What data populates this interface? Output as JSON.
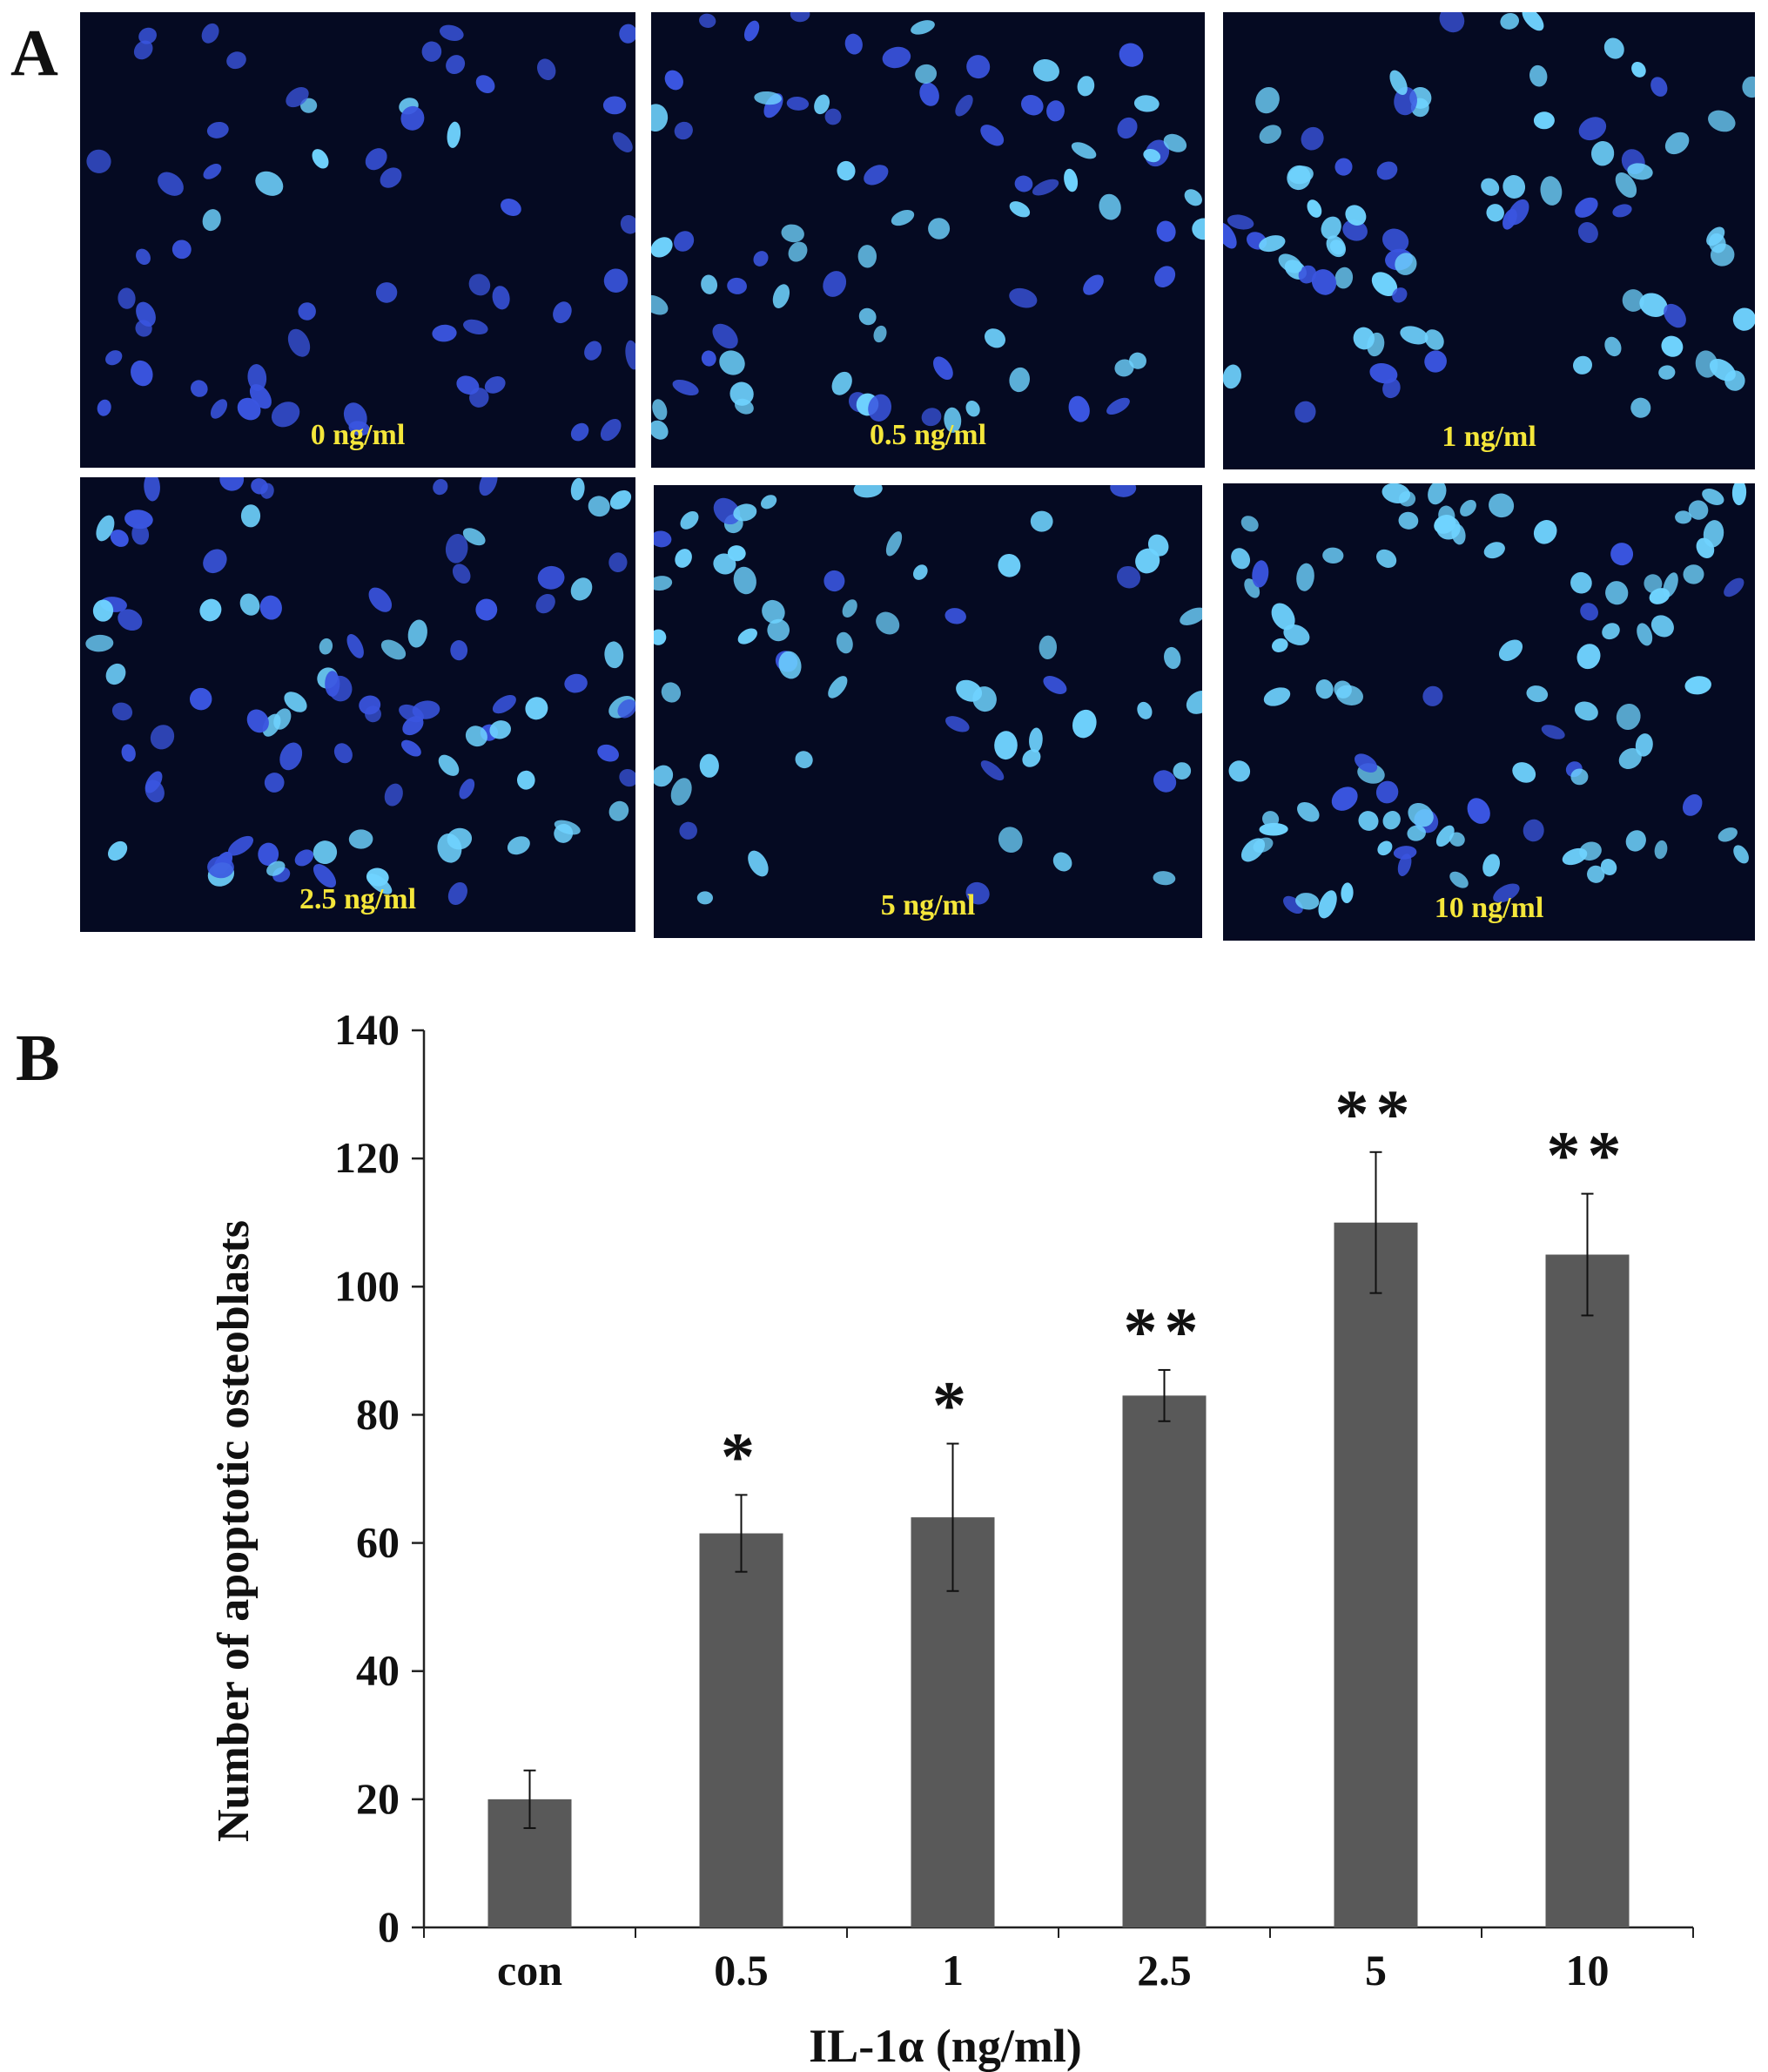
{
  "panels": {
    "a_label": "A",
    "b_label": "B"
  },
  "micrographs": [
    {
      "id": "m0",
      "label": "0 ng/ml",
      "bright": 0.15,
      "density": 60
    },
    {
      "id": "m1",
      "label": "0.5 ng/ml",
      "bright": 0.55,
      "density": 80
    },
    {
      "id": "m2",
      "label": "1 ng/ml",
      "bright": 0.65,
      "density": 80
    },
    {
      "id": "m3",
      "label": "2.5 ng/ml",
      "bright": 0.55,
      "density": 95
    },
    {
      "id": "m4",
      "label": "5 ng/ml",
      "bright": 0.75,
      "density": 60
    },
    {
      "id": "m5",
      "label": "10 ng/ml",
      "bright": 0.8,
      "density": 95
    }
  ],
  "colors": {
    "micro_bg": "#050a22",
    "nucleus": "#3a55e0",
    "nucleus_bright": "#6fd3ff",
    "label_yellow": "#f4e63a",
    "bar": "#595959",
    "axis": "#222222"
  },
  "chart_data": {
    "type": "bar",
    "categories": [
      "con",
      "0.5",
      "1",
      "2.5",
      "5",
      "10"
    ],
    "values": [
      20,
      61.5,
      64,
      83,
      110,
      105
    ],
    "errors": [
      4.5,
      6,
      11.5,
      4,
      11,
      9.5
    ],
    "significance": [
      "",
      "*",
      "*",
      "**",
      "**",
      "**"
    ],
    "xlabel": "IL-1α (ng/ml)",
    "ylabel": "Number of apoptotic osteoblasts",
    "ylim": [
      0,
      140
    ],
    "yticks": [
      0,
      20,
      40,
      60,
      80,
      100,
      120,
      140
    ],
    "grid": false,
    "legend": "none"
  }
}
